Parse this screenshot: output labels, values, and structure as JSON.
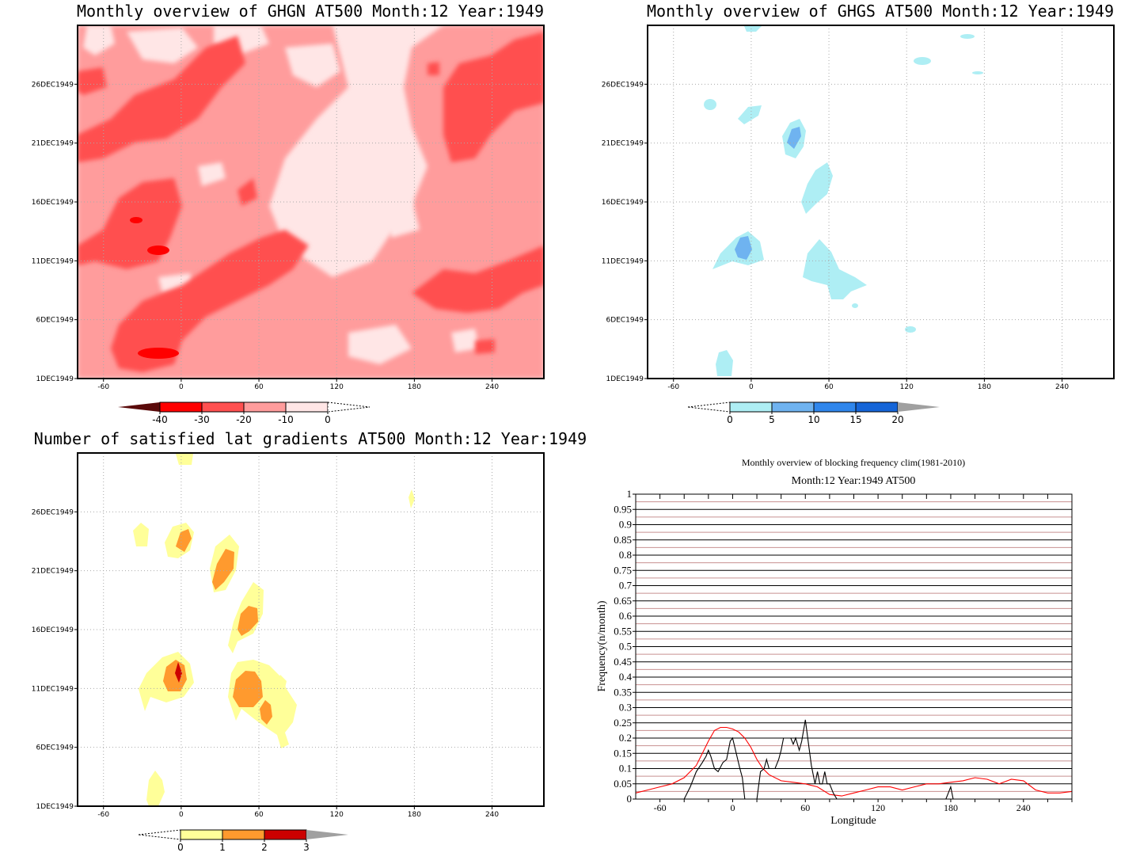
{
  "chart_data": [
    {
      "type": "heatmap",
      "title": "Monthly overview of GHGN AT500 Month:12 Year:1949",
      "x_ticks": [
        "-60",
        "0",
        "60",
        "120",
        "180",
        "240"
      ],
      "x_values": [
        -60,
        0,
        60,
        120,
        180,
        240
      ],
      "xlim": [
        -80,
        280
      ],
      "y_ticks": [
        "1DEC1949",
        "6DEC1949",
        "11DEC1949",
        "16DEC1949",
        "21DEC1949",
        "26DEC1949"
      ],
      "y_values": [
        1,
        6,
        11,
        16,
        21,
        26
      ],
      "ylim": [
        1,
        31
      ],
      "grid": true,
      "colorbar": {
        "labels": [
          "-40",
          "-30",
          "-20",
          "-10",
          "0"
        ],
        "colors": [
          "#5a0a0a",
          "#ff0000",
          "#ff5050",
          "#ff9c9c",
          "#ffe6e6",
          "#ffffff"
        ]
      }
    },
    {
      "type": "heatmap",
      "title": "Monthly overview of GHGS AT500 Month:12 Year:1949",
      "x_ticks": [
        "-60",
        "0",
        "60",
        "120",
        "180",
        "240"
      ],
      "x_values": [
        -60,
        0,
        60,
        120,
        180,
        240
      ],
      "xlim": [
        -80,
        280
      ],
      "y_ticks": [
        "1DEC1949",
        "6DEC1949",
        "11DEC1949",
        "16DEC1949",
        "21DEC1949",
        "26DEC1949"
      ],
      "y_values": [
        1,
        6,
        11,
        16,
        21,
        26
      ],
      "ylim": [
        1,
        31
      ],
      "grid": true,
      "colorbar": {
        "labels": [
          "0",
          "5",
          "10",
          "15",
          "20"
        ],
        "colors": [
          "#ffffff",
          "#aeeef4",
          "#6fb3f0",
          "#2f86ec",
          "#1565d8",
          "#a0a0a0"
        ]
      }
    },
    {
      "type": "heatmap",
      "title": "Number of satisfied lat gradients AT500 Month:12 Year:1949",
      "x_ticks": [
        "-60",
        "0",
        "60",
        "120",
        "180",
        "240"
      ],
      "x_values": [
        -60,
        0,
        60,
        120,
        180,
        240
      ],
      "xlim": [
        -80,
        280
      ],
      "y_ticks": [
        "1DEC1949",
        "6DEC1949",
        "11DEC1949",
        "16DEC1949",
        "21DEC1949",
        "26DEC1949"
      ],
      "y_values": [
        1,
        6,
        11,
        16,
        21,
        26
      ],
      "ylim": [
        1,
        31
      ],
      "grid": true,
      "colorbar": {
        "labels": [
          "0",
          "1",
          "2",
          "3"
        ],
        "colors": [
          "#ffffff",
          "#ffff99",
          "#ff9a2e",
          "#cc0000",
          "#a0a0a0"
        ]
      }
    },
    {
      "type": "line",
      "title": "Monthly overview of blocking frequency clim(1981-2010)",
      "subtitle": "Month:12 Year:1949  AT500",
      "xlabel": "Longitude",
      "ylabel": "Frequency(n/month)",
      "xlim": [
        -80,
        280
      ],
      "ylim": [
        0,
        1
      ],
      "x_ticks": [
        "-60",
        "0",
        "60",
        "120",
        "180",
        "240"
      ],
      "x_values": [
        -60,
        0,
        60,
        120,
        180,
        240
      ],
      "y_ticks": [
        "0",
        "0.05",
        "0.1",
        "0.15",
        "0.2",
        "0.25",
        "0.3",
        "0.35",
        "0.4",
        "0.45",
        "0.5",
        "0.55",
        "0.6",
        "0.65",
        "0.7",
        "0.75",
        "0.8",
        "0.85",
        "0.9",
        "0.95",
        "1"
      ],
      "series": [
        {
          "color": "#ff0000",
          "x": [
            -80,
            -70,
            -60,
            -50,
            -40,
            -30,
            -25,
            -20,
            -15,
            -10,
            -5,
            0,
            5,
            10,
            15,
            20,
            25,
            30,
            40,
            50,
            60,
            70,
            80,
            90,
            100,
            110,
            120,
            130,
            140,
            150,
            160,
            170,
            180,
            190,
            200,
            210,
            220,
            230,
            240,
            250,
            260,
            270,
            280
          ],
          "y": [
            0.02,
            0.03,
            0.04,
            0.05,
            0.07,
            0.11,
            0.15,
            0.19,
            0.225,
            0.235,
            0.235,
            0.23,
            0.22,
            0.2,
            0.17,
            0.13,
            0.1,
            0.08,
            0.06,
            0.055,
            0.05,
            0.04,
            0.015,
            0.01,
            0.02,
            0.03,
            0.04,
            0.04,
            0.03,
            0.04,
            0.05,
            0.05,
            0.055,
            0.06,
            0.07,
            0.065,
            0.05,
            0.065,
            0.06,
            0.03,
            0.02,
            0.02,
            0.025
          ]
        },
        {
          "color": "#000000",
          "x": [
            -40,
            -35,
            -30,
            -25,
            -22,
            -20,
            -18,
            -15,
            -12,
            -8,
            -5,
            -2,
            0,
            3,
            6,
            8,
            10,
            12,
            18,
            20,
            23,
            26,
            28,
            30,
            32,
            35,
            38,
            40,
            42,
            45,
            48,
            50,
            52,
            55,
            57,
            60,
            62,
            65,
            68,
            70,
            72,
            74,
            76,
            78,
            80,
            83,
            86
          ],
          "y": [
            0,
            0.04,
            0.09,
            0.12,
            0.14,
            0.16,
            0.14,
            0.1,
            0.09,
            0.12,
            0.13,
            0.19,
            0.2,
            0.15,
            0.1,
            0.07,
            0,
            0,
            0,
            0,
            0.09,
            0.1,
            0.13,
            0.1,
            0.1,
            0.1,
            0.13,
            0.16,
            0.2,
            0.2,
            0.2,
            0.18,
            0.2,
            0.16,
            0.19,
            0.26,
            0.2,
            0.11,
            0.05,
            0.09,
            0.05,
            0.05,
            0.09,
            0.05,
            0.05,
            0.02,
            0
          ]
        },
        {
          "color": "#000000",
          "x": [
            176,
            178,
            180,
            182
          ],
          "y": [
            0,
            0.02,
            0.04,
            0
          ]
        }
      ]
    }
  ]
}
